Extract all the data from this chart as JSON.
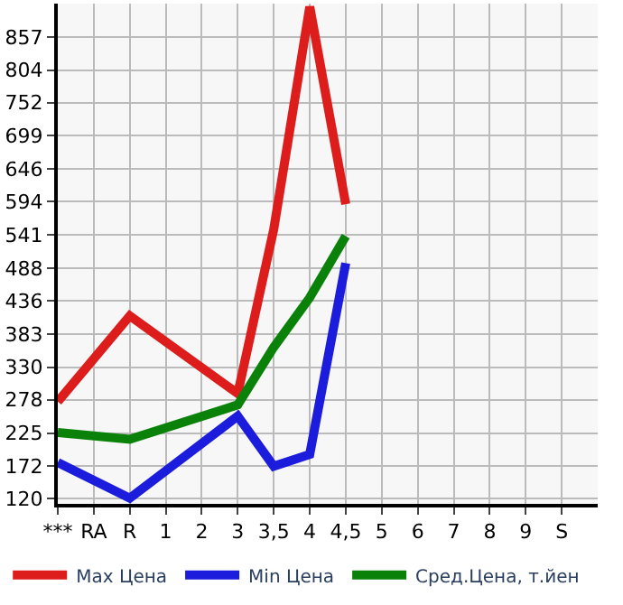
{
  "chart_data": {
    "type": "line",
    "categories": [
      "***",
      "RA",
      "R",
      "1",
      "2",
      "3",
      "3,5",
      "4",
      "4,5",
      "5",
      "6",
      "7",
      "8",
      "9",
      "S"
    ],
    "series": [
      {
        "name": "Max Цена",
        "color": "#dd1c1c",
        "values": [
          275,
          null,
          412,
          null,
          null,
          288,
          550,
          905,
          590,
          null,
          null,
          null,
          null,
          null,
          null
        ]
      },
      {
        "name": "Min Цена",
        "color": "#1c1cdd",
        "values": [
          178,
          null,
          121,
          null,
          null,
          252,
          172,
          191,
          496,
          null,
          null,
          null,
          null,
          null,
          null
        ]
      },
      {
        "name": "Сред.Цена, т.йен",
        "color": "#0a820a",
        "values": [
          226,
          null,
          215,
          null,
          null,
          270,
          362,
          441,
          539,
          null,
          null,
          null,
          null,
          null,
          null
        ]
      }
    ],
    "ylim": [
      112,
      910
    ],
    "yticks": [
      120,
      172,
      225,
      278,
      330,
      383,
      436,
      488,
      541,
      594,
      646,
      699,
      752,
      804,
      857
    ],
    "grid": true,
    "legend": "bottom",
    "marker": "none",
    "line_style": "solid"
  }
}
